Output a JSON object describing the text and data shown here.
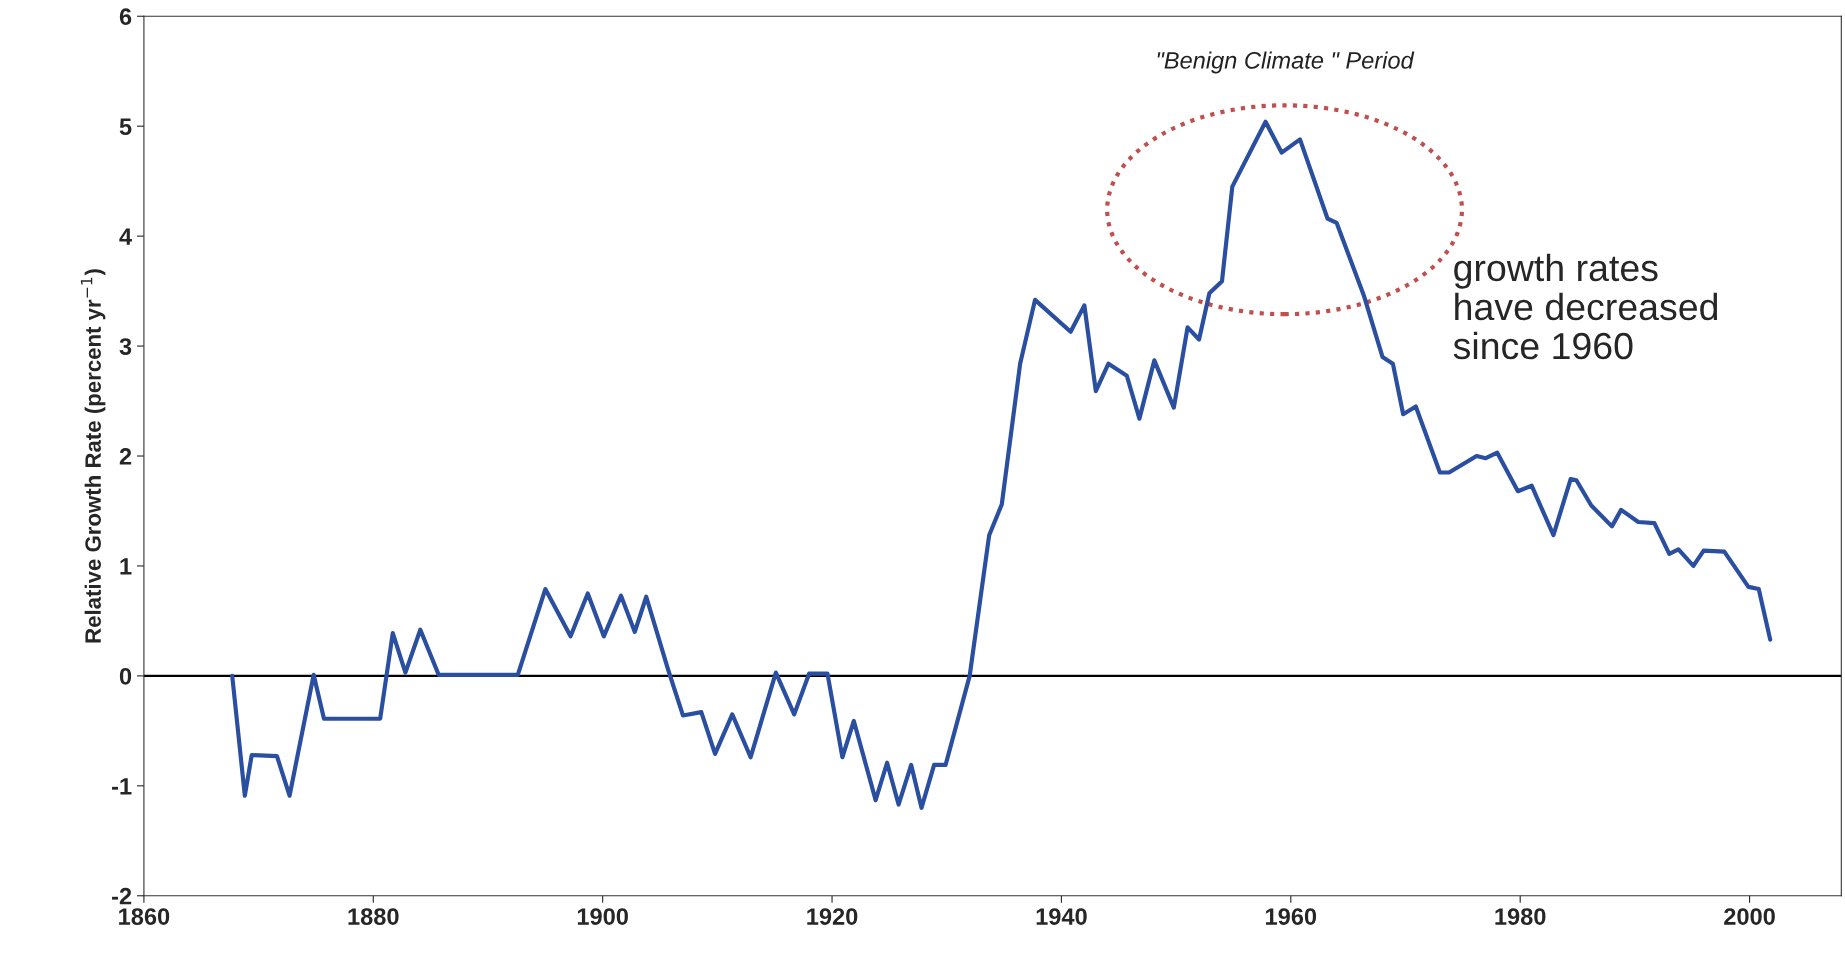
{
  "chart_data": {
    "type": "line",
    "ylabel": "Relative Growth Rate (percent yr$^{−1}$)",
    "x": [
      1867.7,
      1868.8,
      1869.4,
      1871.6,
      1872.7,
      1874.8,
      1875.7,
      1877.4,
      1880.6,
      1881.7,
      1882.8,
      1884.1,
      1885.7,
      1892.6,
      1895.0,
      1897.2,
      1898.7,
      1900.1,
      1901.6,
      1902.8,
      1903.8,
      1905.7,
      1907.0,
      1908.6,
      1909.8,
      1911.3,
      1912.9,
      1915.1,
      1916.7,
      1918.0,
      1919.6,
      1920.9,
      1921.9,
      1923.8,
      1924.8,
      1925.8,
      1926.9,
      1927.8,
      1928.9,
      1929.9,
      1932.0,
      1933.7,
      1934.8,
      1936.4,
      1937.7,
      1940.8,
      1942.0,
      1943.0,
      1944.1,
      1945.7,
      1946.8,
      1948.1,
      1949.8,
      1951.0,
      1952.0,
      1952.9,
      1954.0,
      1954.9,
      1957.8,
      1959.2,
      1960.8,
      1963.2,
      1964.0,
      1966.4,
      1968.0,
      1968.9,
      1969.8,
      1970.9,
      1973.0,
      1973.8,
      1976.2,
      1977.0,
      1978.0,
      1979.8,
      1981.0,
      1982.9,
      1984.4,
      1984.9,
      1986.2,
      1988.0,
      1988.8,
      1990.3,
      1991.7,
      1993.0,
      1993.8,
      1995.1,
      1996.0,
      1997.8,
      1999.9,
      2000.8,
      2001.8
    ],
    "series": [
      {
        "color": "#2b4fa0",
        "values": [
          0,
          -1.09,
          -0.72,
          -0.73,
          -1.09,
          0.01,
          -0.39,
          -0.39,
          -0.39,
          0.39,
          0.03,
          0.42,
          0.01,
          0.01,
          0.79,
          0.36,
          0.75,
          0.36,
          0.73,
          0.4,
          0.72,
          0.06,
          -0.36,
          -0.33,
          -0.71,
          -0.35,
          -0.74,
          0.03,
          -0.35,
          0.02,
          0.02,
          -0.74,
          -0.41,
          -1.13,
          -0.79,
          -1.17,
          -0.81,
          -1.2,
          -0.81,
          -0.81,
          0,
          1.28,
          1.56,
          2.84,
          3.42,
          3.13,
          3.37,
          2.59,
          2.84,
          2.73,
          2.34,
          2.87,
          2.44,
          3.17,
          3.06,
          3.48,
          3.59,
          4.45,
          5.04,
          4.76,
          4.88,
          4.16,
          4.12,
          3.45,
          2.9,
          2.84,
          2.38,
          2.45,
          1.85,
          1.85,
          2.0,
          1.98,
          2.03,
          1.68,
          1.73,
          1.28,
          1.79,
          1.78,
          1.55,
          1.36,
          1.51,
          1.4,
          1.39,
          1.11,
          1.15,
          1.0,
          1.14,
          1.13,
          0.81,
          0.79,
          0.33
        ]
      }
    ],
    "xlim": [
      1860,
      2008
    ],
    "xticks": [
      1860,
      1880,
      1900,
      1920,
      1940,
      1960,
      1980,
      2000
    ],
    "ylim": [
      -2,
      6
    ],
    "yticks": [
      -2,
      -1,
      0,
      1,
      2,
      3,
      4,
      5,
      6
    ],
    "ref_lines": [
      {
        "axis": "y",
        "value": 0,
        "color": "#000000"
      }
    ],
    "annotations": [
      "\"Benign Climate \" Period",
      "growth rates\nhave decreased\nsince 1960"
    ],
    "grid": false,
    "legend": false,
    "marker": "none",
    "line_style": "solid"
  }
}
